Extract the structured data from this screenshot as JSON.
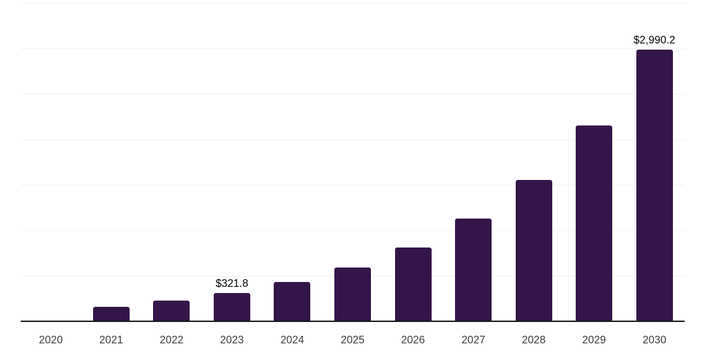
{
  "chart_data": {
    "type": "bar",
    "title": "",
    "xlabel": "",
    "ylabel": "",
    "categories": [
      "2020",
      "2021",
      "2022",
      "2023",
      "2024",
      "2025",
      "2026",
      "2027",
      "2028",
      "2029",
      "2030"
    ],
    "values": [
      10,
      170,
      235,
      321.8,
      440,
      600,
      820,
      1135,
      1560,
      2160,
      2990.2
    ],
    "data_labels": [
      {
        "category": "2023",
        "text": "$321.8"
      },
      {
        "category": "2030",
        "text": "$2,990.2"
      }
    ],
    "ylim": [
      0,
      3500
    ],
    "gridline_interval": 500,
    "grid": "horizontal",
    "legend": "none",
    "y_axis_labels_visible": false,
    "colors": {
      "bar": "#341549",
      "axis_line": "#1a1a1a",
      "gridline": "#f1f1f1",
      "tick_label": "#3a3a3a",
      "data_label": "#000000",
      "background": "#ffffff"
    }
  }
}
